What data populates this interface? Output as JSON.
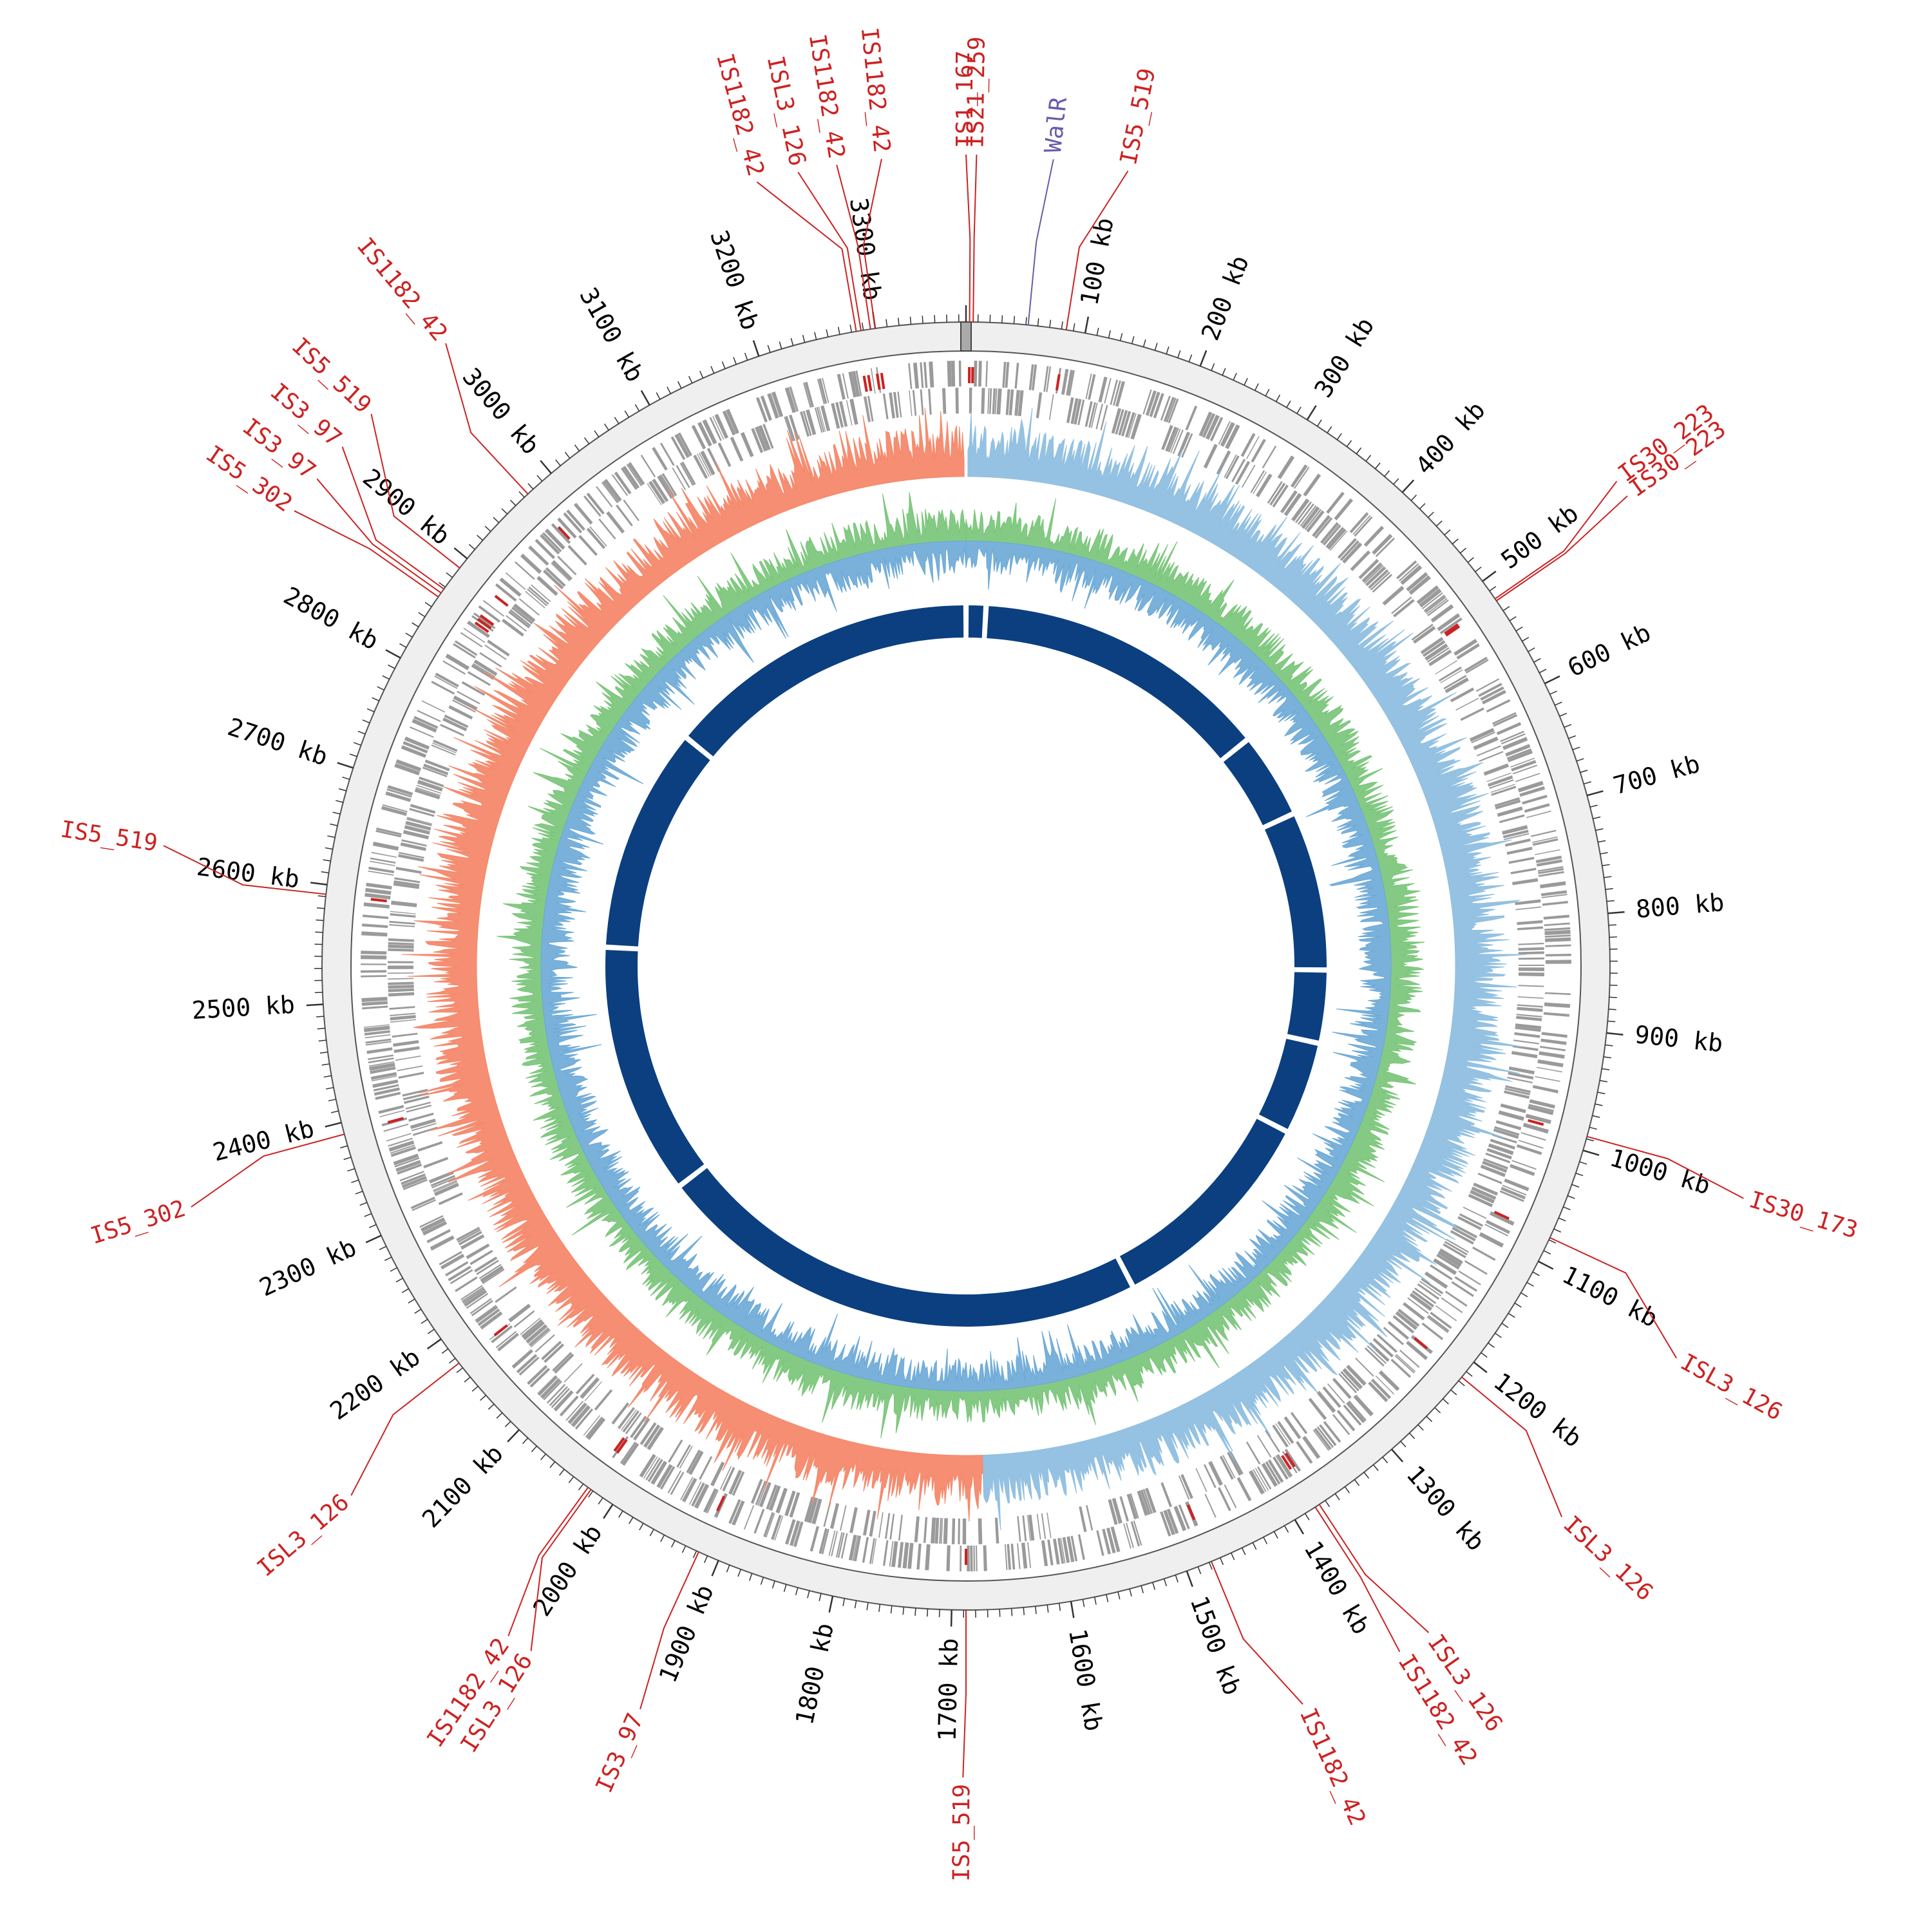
{
  "chart_data": {
    "type": "circular-genome-map",
    "genome_length_kb": 3376,
    "scale_unit": "kb",
    "tick_labels": [
      {
        "pos": 100,
        "label": "100 kb"
      },
      {
        "pos": 200,
        "label": "200 kb"
      },
      {
        "pos": 300,
        "label": "300 kb"
      },
      {
        "pos": 400,
        "label": "400 kb"
      },
      {
        "pos": 500,
        "label": "500 kb"
      },
      {
        "pos": 600,
        "label": "600 kb"
      },
      {
        "pos": 700,
        "label": "700 kb"
      },
      {
        "pos": 800,
        "label": "800 kb"
      },
      {
        "pos": 900,
        "label": "900 kb"
      },
      {
        "pos": 1000,
        "label": "1000 kb"
      },
      {
        "pos": 1100,
        "label": "1100 kb"
      },
      {
        "pos": 1200,
        "label": "1200 kb"
      },
      {
        "pos": 1300,
        "label": "1300 kb"
      },
      {
        "pos": 1400,
        "label": "1400 kb"
      },
      {
        "pos": 1500,
        "label": "1500 kb"
      },
      {
        "pos": 1600,
        "label": "1600 kb"
      },
      {
        "pos": 1700,
        "label": "1700 kb"
      },
      {
        "pos": 1800,
        "label": "1800 kb"
      },
      {
        "pos": 1900,
        "label": "1900 kb"
      },
      {
        "pos": 2000,
        "label": "2000 kb"
      },
      {
        "pos": 2100,
        "label": "2100 kb"
      },
      {
        "pos": 2200,
        "label": "2200 kb"
      },
      {
        "pos": 2300,
        "label": "2300 kb"
      },
      {
        "pos": 2400,
        "label": "2400 kb"
      },
      {
        "pos": 2500,
        "label": "2500 kb"
      },
      {
        "pos": 2600,
        "label": "2600 kb"
      },
      {
        "pos": 2700,
        "label": "2700 kb"
      },
      {
        "pos": 2800,
        "label": "2800 kb"
      },
      {
        "pos": 2900,
        "label": "2900 kb"
      },
      {
        "pos": 3000,
        "label": "3000 kb"
      },
      {
        "pos": 3100,
        "label": "3100 kb"
      },
      {
        "pos": 3200,
        "label": "3200 kb"
      },
      {
        "pos": 3300,
        "label": "3300 kb"
      }
    ],
    "features": [
      {
        "name": "IS5_519",
        "pos": 84,
        "label_pos": 108,
        "color": "#cc2222"
      },
      {
        "name": "WalR",
        "pos": 52,
        "label_pos": 58,
        "color": "#6a5aa8"
      },
      {
        "name": "IS21_259",
        "pos": 6,
        "label_pos": 7,
        "color": "#cc2222"
      },
      {
        "name": "IS1_167",
        "pos": 3,
        "label_pos": 0,
        "color": "#cc2222"
      },
      {
        "name": "IS1182_42",
        "pos": 3300,
        "label_pos": 3320,
        "color": "#cc2222"
      },
      {
        "name": "IS1182_42",
        "pos": 3296,
        "label_pos": 3290,
        "color": "#cc2222"
      },
      {
        "name": "ISL3_126",
        "pos": 3288,
        "label_pos": 3264,
        "color": "#cc2222"
      },
      {
        "name": "IS1182_42",
        "pos": 3284,
        "label_pos": 3236,
        "color": "#cc2222"
      },
      {
        "name": "IS1182_42",
        "pos": 2974,
        "label_pos": 3002,
        "color": "#cc2222"
      },
      {
        "name": "IS5_519",
        "pos": 2890,
        "label_pos": 2934,
        "color": "#cc2222"
      },
      {
        "name": "IS3_97",
        "pos": 2868,
        "label_pos": 2905,
        "color": "#cc2222"
      },
      {
        "name": "IS3_97",
        "pos": 2864,
        "label_pos": 2878,
        "color": "#cc2222"
      },
      {
        "name": "IS5_302",
        "pos": 2860,
        "label_pos": 2852,
        "color": "#cc2222"
      },
      {
        "name": "IS5_519",
        "pos": 2592,
        "label_pos": 2612,
        "color": "#cc2222"
      },
      {
        "name": "IS5_302",
        "pos": 2390,
        "label_pos": 2370,
        "color": "#cc2222"
      },
      {
        "name": "ISL3_126",
        "pos": 2175,
        "label_pos": 2150,
        "color": "#cc2222"
      },
      {
        "name": "IS1182_42",
        "pos": 2025,
        "label_pos": 2010,
        "color": "#cc2222"
      },
      {
        "name": "ISL3_126",
        "pos": 2022,
        "label_pos": 1992,
        "color": "#cc2222"
      },
      {
        "name": "IS3_97",
        "pos": 1918,
        "label_pos": 1910,
        "color": "#cc2222"
      },
      {
        "name": "IS5_519",
        "pos": 1688,
        "label_pos": 1690,
        "color": "#cc2222"
      },
      {
        "name": "IS1182_42",
        "pos": 1478,
        "label_pos": 1458,
        "color": "#cc2222"
      },
      {
        "name": "IS1182_42",
        "pos": 1380,
        "label_pos": 1385,
        "color": "#cc2222"
      },
      {
        "name": "ISL3_126",
        "pos": 1376,
        "label_pos": 1362,
        "color": "#cc2222"
      },
      {
        "name": "ISL3_126",
        "pos": 1216,
        "label_pos": 1245,
        "color": "#cc2222"
      },
      {
        "name": "ISL3_126",
        "pos": 1078,
        "label_pos": 1115,
        "color": "#cc2222"
      },
      {
        "name": "IS30_173",
        "pos": 988,
        "label_pos": 1000,
        "color": "#cc2222"
      },
      {
        "name": "IS30_223",
        "pos": 518,
        "label_pos": 500,
        "color": "#cc2222"
      },
      {
        "name": "IS30_223",
        "pos": 520,
        "label_pos": 512,
        "color": "#cc2222"
      }
    ],
    "tracks": [
      {
        "name": "genes",
        "color": "#9a9a9a"
      },
      {
        "name": "gc-skew",
        "positive_color": "#8fbfe0",
        "negative_color": "#f4886a"
      },
      {
        "name": "gc-content",
        "positive_color": "#77c477",
        "negative_color": "#6aa8d6"
      },
      {
        "name": "conserved-blocks",
        "color": "#0b3f80"
      }
    ],
    "colors": {
      "backbone": "#efefef",
      "is_element": "#cc2222",
      "regulator": "#6a5aa8",
      "gene": "#9a9a9a",
      "skew_pos": "#8fbfe0",
      "skew_neg": "#f4886a",
      "gc_pos": "#77c477",
      "gc_neg": "#6aa8d6",
      "blocks": "#0b3f80"
    }
  }
}
